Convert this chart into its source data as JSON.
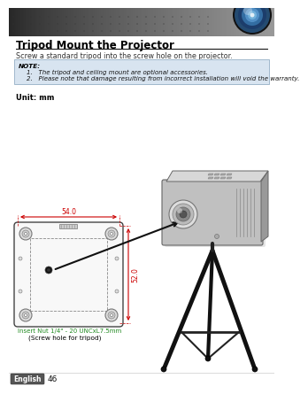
{
  "page_bg": "#ffffff",
  "title_text": "Tripod Mount the Projector",
  "title_fontsize": 8.5,
  "title_color": "#000000",
  "subtitle_text": "Screw a standard tripod into the screw hole on the projector.",
  "subtitle_fontsize": 5.8,
  "subtitle_color": "#333333",
  "note_bg": "#d8e4f0",
  "note_border": "#a0b8cc",
  "note_title": "NOTE:",
  "note_line1": "1.   The tripod and ceiling mount are optional accessories.",
  "note_line2": "2.   Please note that damage resulting from incorrect installation will void the warranty.",
  "note_fontsize": 5.2,
  "unit_text": "Unit: mm",
  "unit_fontsize": 6.0,
  "dim_width": "54.0",
  "dim_height": "52.0",
  "dim_color": "#cc0000",
  "dim_fontsize": 5.5,
  "label_insert": "Insert Nut 1/4\" - 20 UNCxL7.5mm",
  "label_screw": "(Screw hole for tripod)",
  "label_color_insert": "#228B22",
  "label_color_screw": "#000000",
  "label_fontsize": 5.0,
  "footer_text": "English",
  "footer_page": "46",
  "footer_fontsize": 5.5
}
